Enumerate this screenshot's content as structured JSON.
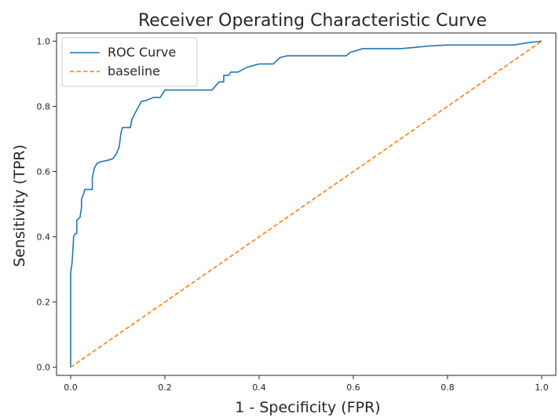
{
  "chart_data": {
    "type": "line",
    "title": "Receiver Operating Characteristic Curve",
    "xlabel": "1 - Specificity (FPR)",
    "ylabel": "Sensitivity (TPR)",
    "xlim": [
      -0.03,
      1.03
    ],
    "ylim": [
      -0.025,
      1.025
    ],
    "xticks": [
      0.0,
      0.2,
      0.4,
      0.6,
      0.8,
      1.0
    ],
    "xtick_labels": [
      "0.0",
      "0.2",
      "0.4",
      "0.6",
      "0.8",
      "1.0"
    ],
    "yticks": [
      0.0,
      0.2,
      0.4,
      0.6,
      0.8,
      1.0
    ],
    "ytick_labels": [
      "0.0",
      "0.2",
      "0.4",
      "0.6",
      "0.8",
      "1.0"
    ],
    "grid": false,
    "legend": {
      "position": "top-left"
    },
    "series": [
      {
        "name": "ROC Curve",
        "color": "#1f77b4",
        "linestyle": "solid",
        "x": [
          0.0,
          0.0,
          0.003,
          0.006,
          0.006,
          0.01,
          0.013,
          0.013,
          0.02,
          0.023,
          0.023,
          0.027,
          0.03,
          0.033,
          0.04,
          0.046,
          0.046,
          0.05,
          0.056,
          0.063,
          0.08,
          0.09,
          0.097,
          0.103,
          0.107,
          0.11,
          0.117,
          0.127,
          0.13,
          0.137,
          0.15,
          0.16,
          0.175,
          0.19,
          0.2,
          0.21,
          0.225,
          0.26,
          0.3,
          0.315,
          0.325,
          0.325,
          0.335,
          0.34,
          0.355,
          0.375,
          0.4,
          0.43,
          0.445,
          0.46,
          0.5,
          0.55,
          0.585,
          0.593,
          0.62,
          0.66,
          0.7,
          0.725,
          0.76,
          0.8,
          0.85,
          0.9,
          0.94,
          0.97,
          1.0
        ],
        "y": [
          0.0,
          0.29,
          0.32,
          0.39,
          0.4,
          0.41,
          0.41,
          0.45,
          0.46,
          0.49,
          0.515,
          0.53,
          0.545,
          0.545,
          0.545,
          0.545,
          0.58,
          0.61,
          0.625,
          0.63,
          0.635,
          0.64,
          0.655,
          0.675,
          0.72,
          0.735,
          0.735,
          0.735,
          0.76,
          0.78,
          0.815,
          0.818,
          0.827,
          0.827,
          0.85,
          0.85,
          0.85,
          0.85,
          0.85,
          0.875,
          0.875,
          0.895,
          0.895,
          0.905,
          0.905,
          0.92,
          0.93,
          0.93,
          0.95,
          0.955,
          0.955,
          0.955,
          0.955,
          0.965,
          0.977,
          0.977,
          0.977,
          0.98,
          0.985,
          0.988,
          0.988,
          0.988,
          0.988,
          0.995,
          1.0
        ]
      },
      {
        "name": "baseline",
        "color": "#ff7f0e",
        "linestyle": "dashed",
        "x": [
          0.0,
          1.0
        ],
        "y": [
          0.0,
          1.0
        ]
      }
    ]
  }
}
